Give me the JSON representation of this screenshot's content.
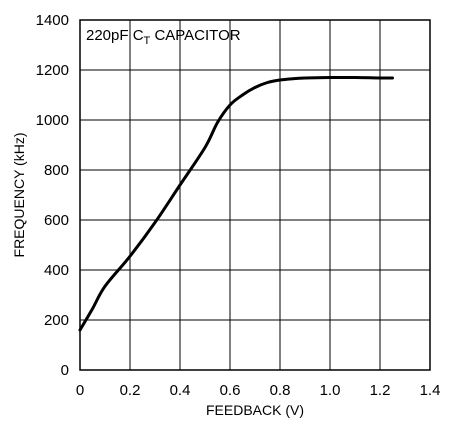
{
  "chart_data": {
    "type": "line",
    "xlabel": "FEEDBACK (V)",
    "ylabel": "FREQUENCY (kHz)",
    "xlim": [
      0,
      1.4
    ],
    "ylim": [
      0,
      1400
    ],
    "x_ticks": [
      "0",
      "0.2",
      "0.4",
      "0.6",
      "0.8",
      "1.0",
      "1.2",
      "1.4"
    ],
    "y_ticks": [
      "0",
      "200",
      "400",
      "600",
      "800",
      "1000",
      "1200",
      "1400"
    ],
    "grid": true,
    "annotation": {
      "main": "220pF C",
      "sub": "T",
      "rest": " CAPACITOR"
    },
    "series": [
      {
        "name": "",
        "x": [
          0.0,
          0.05,
          0.1,
          0.2,
          0.3,
          0.4,
          0.5,
          0.55,
          0.6,
          0.65,
          0.7,
          0.75,
          0.8,
          0.85,
          0.9,
          1.0,
          1.1,
          1.2,
          1.25
        ],
        "y": [
          160,
          245,
          335,
          455,
          590,
          740,
          890,
          990,
          1060,
          1100,
          1130,
          1150,
          1160,
          1165,
          1168,
          1170,
          1170,
          1168,
          1168
        ]
      }
    ]
  }
}
